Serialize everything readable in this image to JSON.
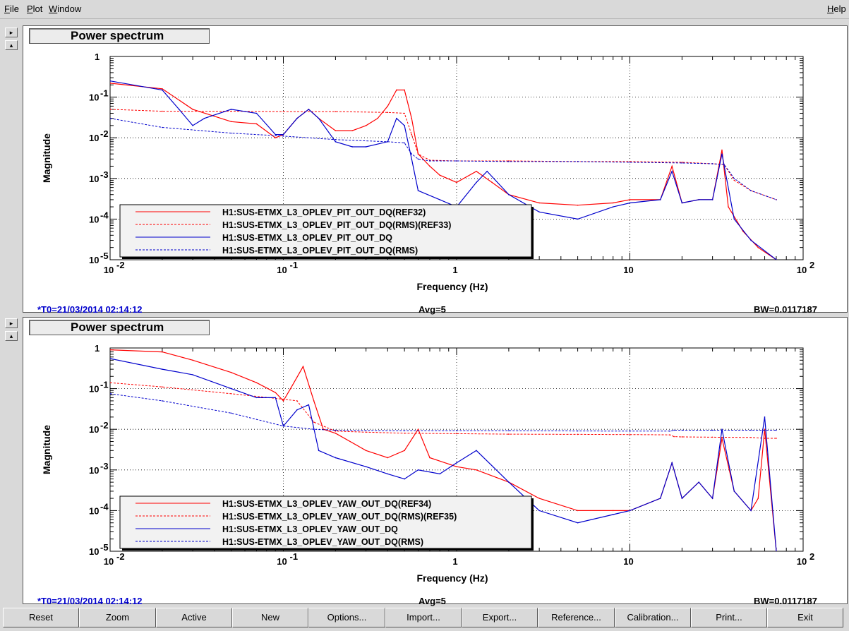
{
  "menu": {
    "file": "File",
    "plot": "Plot",
    "window": "Window",
    "help": "Help"
  },
  "side_buttons": {
    "right": "▸",
    "up": "▴"
  },
  "panels": [
    {
      "title": "Power spectrum",
      "status": {
        "t0": "*T0=21/03/2014 02:14:12",
        "avg": "Avg=5",
        "bw": "BW=0.0117187"
      },
      "chart_data": {
        "type": "line",
        "title": "",
        "xlabel": "Frequency (Hz)",
        "ylabel": "Magnitude",
        "x_scale": "log",
        "y_scale": "log",
        "xlim": [
          0.01,
          100
        ],
        "ylim": [
          1e-05,
          1
        ],
        "x_ticks": [
          {
            "base": "10",
            "exp": "-2"
          },
          {
            "base": "10",
            "exp": "-1"
          },
          {
            "base": "1",
            "exp": ""
          },
          {
            "base": "10",
            "exp": ""
          },
          {
            "base": "10",
            "exp": "2"
          }
        ],
        "y_ticks": [
          {
            "base": "1",
            "exp": ""
          },
          {
            "base": "10",
            "exp": "-1"
          },
          {
            "base": "10",
            "exp": "-2"
          },
          {
            "base": "10",
            "exp": "-3"
          },
          {
            "base": "10",
            "exp": "-4"
          },
          {
            "base": "10",
            "exp": "-5"
          }
        ],
        "grid": true,
        "legend": "bottom-left",
        "series": [
          {
            "name": "H1:SUS-ETMX_L3_OPLEV_PIT_OUT_DQ(REF32)",
            "color": "#ff0000",
            "dash": false,
            "x": [
              0.01,
              0.02,
              0.03,
              0.05,
              0.07,
              0.09,
              0.1,
              0.12,
              0.14,
              0.16,
              0.2,
              0.25,
              0.3,
              0.35,
              0.4,
              0.45,
              0.5,
              0.55,
              0.6,
              0.7,
              0.8,
              1.0,
              1.3,
              1.6,
              2.0,
              3.0,
              5.0,
              8.0,
              10,
              15,
              17.5,
              20,
              25,
              30,
              34,
              37,
              45,
              55,
              70
            ],
            "y": [
              0.22,
              0.16,
              0.05,
              0.025,
              0.022,
              0.01,
              0.012,
              0.03,
              0.05,
              0.03,
              0.015,
              0.015,
              0.02,
              0.03,
              0.06,
              0.15,
              0.15,
              0.03,
              0.004,
              0.002,
              0.0012,
              0.0008,
              0.0015,
              0.0008,
              0.0004,
              0.00025,
              0.00022,
              0.00025,
              0.0003,
              0.0003,
              0.002,
              0.00025,
              0.0003,
              0.0003,
              0.005,
              0.0002,
              5e-05,
              2e-05,
              1e-05
            ]
          },
          {
            "name": "H1:SUS-ETMX_L3_OPLEV_PIT_OUT_DQ(RMS)(REF33)",
            "color": "#ff0000",
            "dash": true,
            "x": [
              0.01,
              0.02,
              0.05,
              0.1,
              0.2,
              0.4,
              0.5,
              0.55,
              0.6,
              0.7,
              1,
              2,
              5,
              10,
              20,
              30,
              35,
              40,
              50,
              70
            ],
            "y": [
              0.05,
              0.045,
              0.045,
              0.044,
              0.044,
              0.042,
              0.04,
              0.012,
              0.004,
              0.0028,
              0.0027,
              0.0027,
              0.0026,
              0.0026,
              0.0025,
              0.0023,
              0.0022,
              0.0009,
              0.0005,
              0.0003
            ]
          },
          {
            "name": "H1:SUS-ETMX_L3_OPLEV_PIT_OUT_DQ",
            "color": "#0000cc",
            "dash": false,
            "x": [
              0.01,
              0.02,
              0.025,
              0.03,
              0.035,
              0.05,
              0.07,
              0.09,
              0.1,
              0.12,
              0.14,
              0.16,
              0.2,
              0.25,
              0.3,
              0.4,
              0.45,
              0.5,
              0.55,
              0.6,
              0.8,
              1.0,
              1.3,
              1.5,
              2,
              3,
              5,
              8,
              10,
              15,
              17.5,
              20,
              25,
              30,
              34,
              40,
              50,
              70
            ],
            "y": [
              0.25,
              0.15,
              0.05,
              0.02,
              0.03,
              0.05,
              0.04,
              0.012,
              0.012,
              0.03,
              0.05,
              0.03,
              0.008,
              0.006,
              0.006,
              0.008,
              0.03,
              0.02,
              0.003,
              0.0005,
              0.0003,
              0.0002,
              0.0008,
              0.0015,
              0.0004,
              0.00015,
              0.0001,
              0.0002,
              0.00025,
              0.0003,
              0.0015,
              0.00025,
              0.0003,
              0.0003,
              0.004,
              0.0001,
              3e-05,
              1e-05
            ]
          },
          {
            "name": "H1:SUS-ETMX_L3_OPLEV_PIT_OUT_DQ(RMS)",
            "color": "#0000cc",
            "dash": true,
            "x": [
              0.01,
              0.02,
              0.05,
              0.1,
              0.2,
              0.4,
              0.5,
              0.55,
              0.6,
              0.7,
              1,
              2,
              5,
              10,
              20,
              30,
              35,
              40,
              50,
              70
            ],
            "y": [
              0.03,
              0.018,
              0.013,
              0.011,
              0.009,
              0.008,
              0.0075,
              0.004,
              0.003,
              0.0027,
              0.0027,
              0.0026,
              0.0026,
              0.0025,
              0.0024,
              0.0023,
              0.0022,
              0.001,
              0.0005,
              0.0003
            ]
          }
        ]
      }
    },
    {
      "title": "Power spectrum",
      "status": {
        "t0": "*T0=21/03/2014 02:14:12",
        "avg": "Avg=5",
        "bw": "BW=0.0117187"
      },
      "chart_data": {
        "type": "line",
        "title": "",
        "xlabel": "Frequency (Hz)",
        "ylabel": "Magnitude",
        "x_scale": "log",
        "y_scale": "log",
        "xlim": [
          0.01,
          100
        ],
        "ylim": [
          1e-05,
          1
        ],
        "x_ticks": [
          {
            "base": "10",
            "exp": "-2"
          },
          {
            "base": "10",
            "exp": "-1"
          },
          {
            "base": "1",
            "exp": ""
          },
          {
            "base": "10",
            "exp": ""
          },
          {
            "base": "10",
            "exp": "2"
          }
        ],
        "y_ticks": [
          {
            "base": "1",
            "exp": ""
          },
          {
            "base": "10",
            "exp": "-1"
          },
          {
            "base": "10",
            "exp": "-2"
          },
          {
            "base": "10",
            "exp": "-3"
          },
          {
            "base": "10",
            "exp": "-4"
          },
          {
            "base": "10",
            "exp": "-5"
          }
        ],
        "grid": true,
        "legend": "bottom-left",
        "series": [
          {
            "name": "H1:SUS-ETMX_L3_OPLEV_YAW_OUT_DQ(REF34)",
            "color": "#ff0000",
            "dash": false,
            "x": [
              0.01,
              0.02,
              0.03,
              0.05,
              0.07,
              0.09,
              0.1,
              0.11,
              0.13,
              0.15,
              0.17,
              0.2,
              0.3,
              0.4,
              0.5,
              0.6,
              0.7,
              1,
              1.3,
              2,
              3,
              5,
              8,
              10,
              15,
              17.5,
              20,
              25,
              30,
              34,
              40,
              50,
              55,
              60,
              70
            ],
            "y": [
              0.9,
              0.8,
              0.5,
              0.25,
              0.14,
              0.08,
              0.05,
              0.1,
              0.35,
              0.05,
              0.01,
              0.008,
              0.003,
              0.002,
              0.003,
              0.01,
              0.002,
              0.0012,
              0.001,
              0.0005,
              0.0002,
              0.0001,
              0.0001,
              0.0001,
              0.0002,
              0.0015,
              0.0002,
              0.0005,
              0.0002,
              0.006,
              0.0003,
              0.0001,
              0.0002,
              0.01,
              1e-05
            ]
          },
          {
            "name": "H1:SUS-ETMX_L3_OPLEV_YAW_OUT_DQ(RMS)(REF35)",
            "color": "#ff0000",
            "dash": true,
            "x": [
              0.01,
              0.02,
              0.05,
              0.1,
              0.12,
              0.15,
              0.2,
              0.3,
              0.5,
              1,
              2,
              5,
              10,
              17,
              18,
              20,
              30,
              50,
              60,
              70
            ],
            "y": [
              0.14,
              0.11,
              0.075,
              0.055,
              0.05,
              0.015,
              0.009,
              0.0085,
              0.008,
              0.0078,
              0.0076,
              0.0075,
              0.0074,
              0.0073,
              0.0066,
              0.0065,
              0.0064,
              0.0063,
              0.006,
              0.006
            ]
          },
          {
            "name": "H1:SUS-ETMX_L3_OPLEV_YAW_OUT_DQ",
            "color": "#0000cc",
            "dash": false,
            "x": [
              0.01,
              0.02,
              0.03,
              0.05,
              0.07,
              0.09,
              0.1,
              0.12,
              0.14,
              0.16,
              0.2,
              0.3,
              0.4,
              0.5,
              0.6,
              0.8,
              1,
              1.3,
              2,
              3,
              5,
              8,
              10,
              15,
              17.5,
              20,
              25,
              30,
              34,
              40,
              50,
              60,
              70
            ],
            "y": [
              0.55,
              0.3,
              0.22,
              0.1,
              0.06,
              0.06,
              0.012,
              0.03,
              0.04,
              0.003,
              0.002,
              0.0012,
              0.0008,
              0.0006,
              0.001,
              0.0008,
              0.0015,
              0.003,
              0.0005,
              0.0001,
              5e-05,
              8e-05,
              0.0001,
              0.0002,
              0.0015,
              0.0002,
              0.0005,
              0.0002,
              0.01,
              0.0003,
              0.0001,
              0.02,
              1e-05
            ]
          },
          {
            "name": "H1:SUS-ETMX_L3_OPLEV_YAW_OUT_DQ(RMS)",
            "color": "#0000cc",
            "dash": true,
            "x": [
              0.01,
              0.02,
              0.05,
              0.1,
              0.15,
              0.2,
              0.3,
              0.5,
              1,
              2,
              5,
              10,
              17,
              18,
              20,
              30,
              50,
              70
            ],
            "y": [
              0.075,
              0.05,
              0.025,
              0.012,
              0.01,
              0.0095,
              0.0093,
              0.0092,
              0.0092,
              0.0092,
              0.0091,
              0.009,
              0.009,
              0.0095,
              0.0095,
              0.0095,
              0.0095,
              0.0095
            ]
          }
        ]
      }
    }
  ],
  "buttons": [
    "Reset",
    "Zoom",
    "Active",
    "New",
    "Options...",
    "Import...",
    "Export...",
    "Reference...",
    "Calibration...",
    "Print...",
    "Exit"
  ]
}
